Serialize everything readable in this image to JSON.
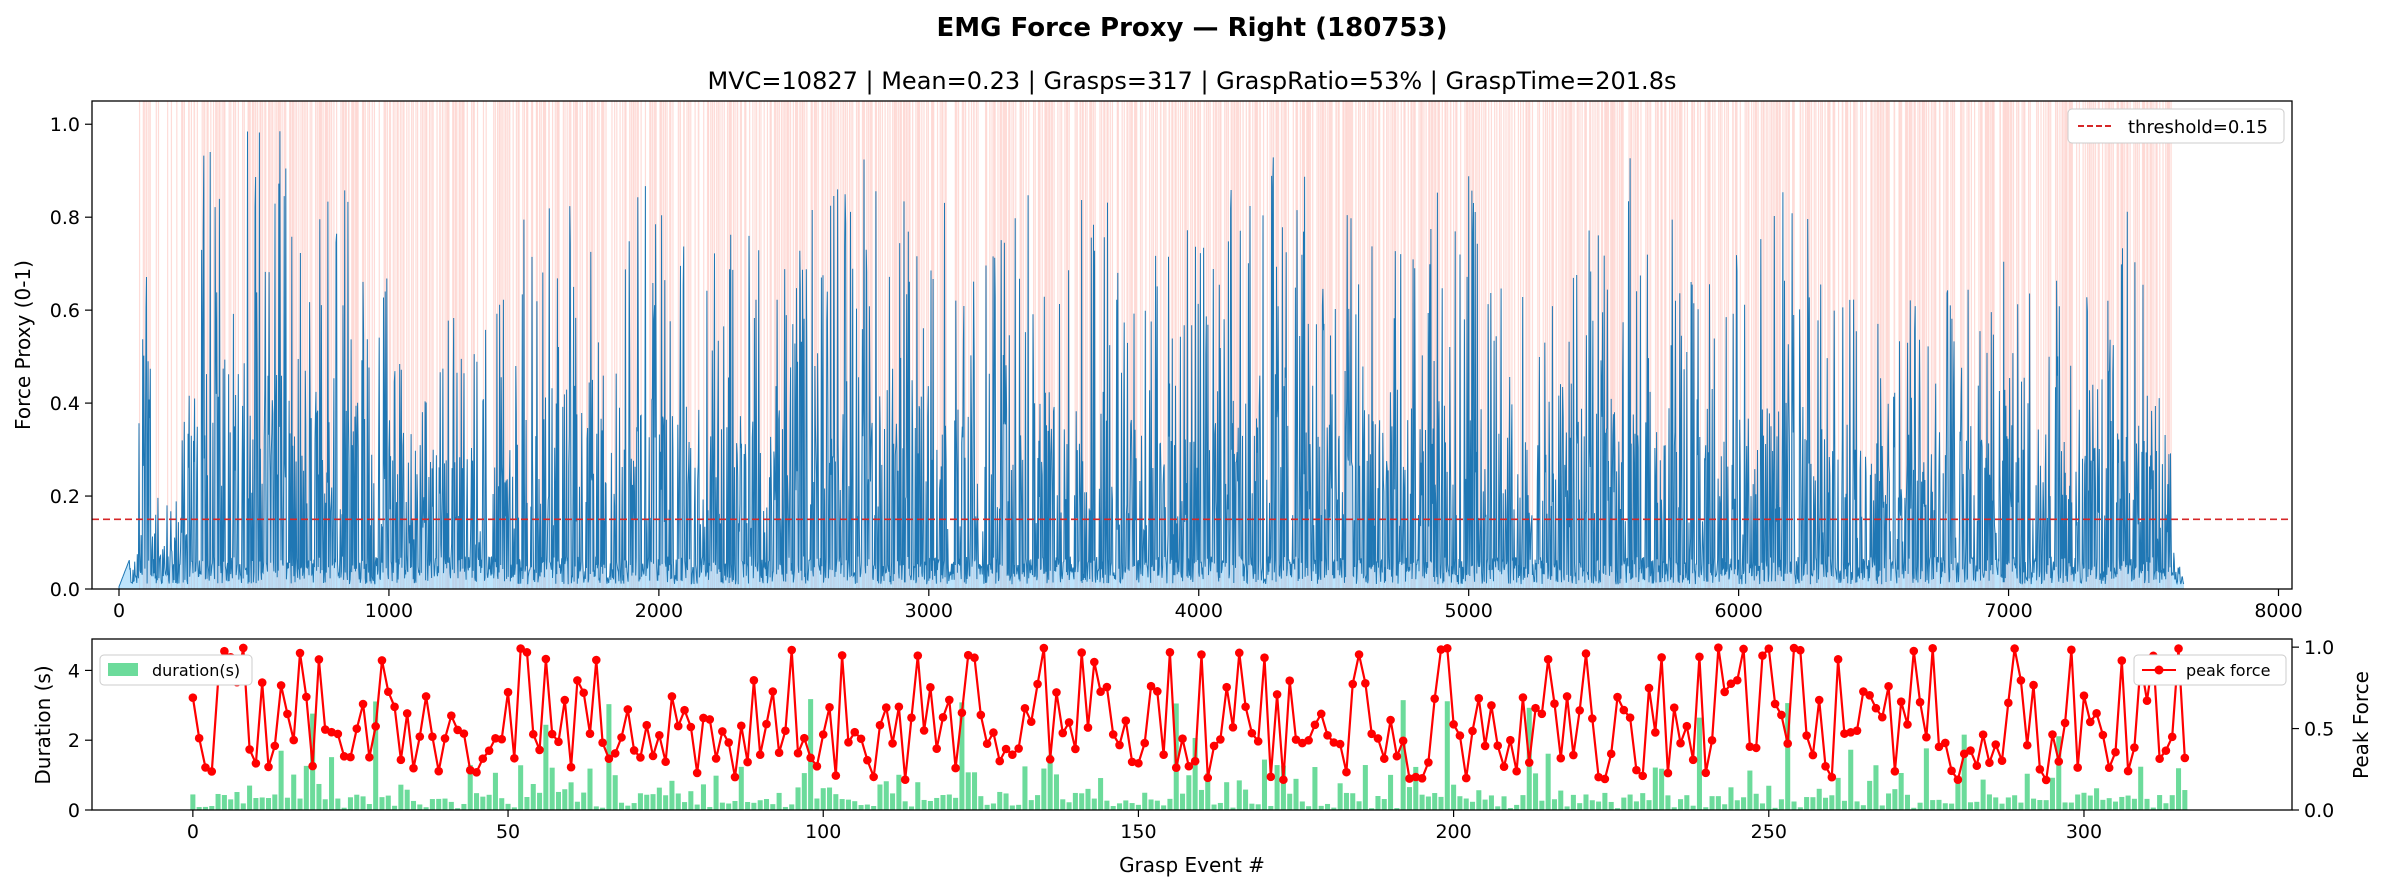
{
  "figure": {
    "suptitle": "EMG Force Proxy — Right (180753)"
  },
  "colors": {
    "force_line": "#1f77b4",
    "force_fill": "#87cefa",
    "grasp_span": "#fa8072",
    "threshold": "#d62728",
    "duration_bar": "#2ecc71",
    "peak_line": "#ff0000",
    "peak_axis_label": "#e74c3c"
  },
  "chart_data": [
    {
      "type": "area",
      "title": "MVC=10827 | Mean=0.23 | Grasps=317 | GraspRatio=53% | GraspTime=201.8s",
      "xlabel": "",
      "ylabel": "Force Proxy (0-1)",
      "xlim": [
        -100,
        8050
      ],
      "ylim": [
        0,
        1.05
      ],
      "xticks": [
        0,
        1000,
        2000,
        3000,
        4000,
        5000,
        6000,
        7000,
        8000
      ],
      "yticks": [
        0.0,
        0.2,
        0.4,
        0.6,
        0.8,
        1.0
      ],
      "threshold": 0.15,
      "legend": {
        "position": "top-right",
        "entries": [
          "threshold=0.15"
        ]
      },
      "signal_length": 7650,
      "signal_envelope": [
        [
          0,
          0
        ],
        [
          60,
          0.1
        ],
        [
          80,
          0.6
        ],
        [
          100,
          0.79
        ],
        [
          130,
          0.2
        ],
        [
          200,
          0.2
        ],
        [
          230,
          0.4
        ],
        [
          270,
          1.0
        ],
        [
          400,
          1.0
        ],
        [
          700,
          1.0
        ],
        [
          1000,
          0.75
        ],
        [
          1100,
          0.3
        ],
        [
          1160,
          0.6
        ],
        [
          1300,
          0.6
        ],
        [
          1500,
          0.85
        ],
        [
          1800,
          0.95
        ],
        [
          2100,
          0.82
        ],
        [
          2400,
          0.75
        ],
        [
          2600,
          0.85
        ],
        [
          2900,
          1.0
        ],
        [
          3200,
          0.72
        ],
        [
          3500,
          1.0
        ],
        [
          3800,
          0.7
        ],
        [
          4300,
          0.98
        ],
        [
          4700,
          0.75
        ],
        [
          5000,
          0.92
        ],
        [
          5300,
          0.7
        ],
        [
          5600,
          0.95
        ],
        [
          5900,
          0.65
        ],
        [
          6200,
          0.9
        ],
        [
          6500,
          0.65
        ],
        [
          6800,
          0.72
        ],
        [
          7200,
          0.7
        ],
        [
          7350,
          1.0
        ],
        [
          7500,
          0.75
        ],
        [
          7600,
          0.3
        ],
        [
          7650,
          0.02
        ]
      ]
    },
    {
      "type": "bar",
      "title": "",
      "xlabel": "Grasp Event #",
      "ylabel": "Duration (s)",
      "y2label": "Peak Force",
      "xlim": [
        -16,
        333
      ],
      "ylim": [
        0,
        4.9
      ],
      "y2lim": [
        0,
        1.05
      ],
      "xticks": [
        0,
        50,
        100,
        150,
        200,
        250,
        300
      ],
      "yticks": [
        0,
        2,
        4
      ],
      "y2ticks": [
        0.0,
        0.5,
        1.0
      ],
      "event_count": 317,
      "series": [
        {
          "name": "duration(s)",
          "kind": "bar",
          "axis": "left",
          "count": 317,
          "max": 3.2,
          "mean": 0.64
        },
        {
          "name": "peak force",
          "kind": "line",
          "axis": "right",
          "count": 317,
          "min": 0.18,
          "max": 1.0,
          "mean": 0.5
        }
      ],
      "legends": [
        {
          "position": "top-left",
          "entries": [
            "duration(s)"
          ]
        },
        {
          "position": "top-right",
          "entries": [
            "peak force"
          ]
        }
      ]
    }
  ]
}
